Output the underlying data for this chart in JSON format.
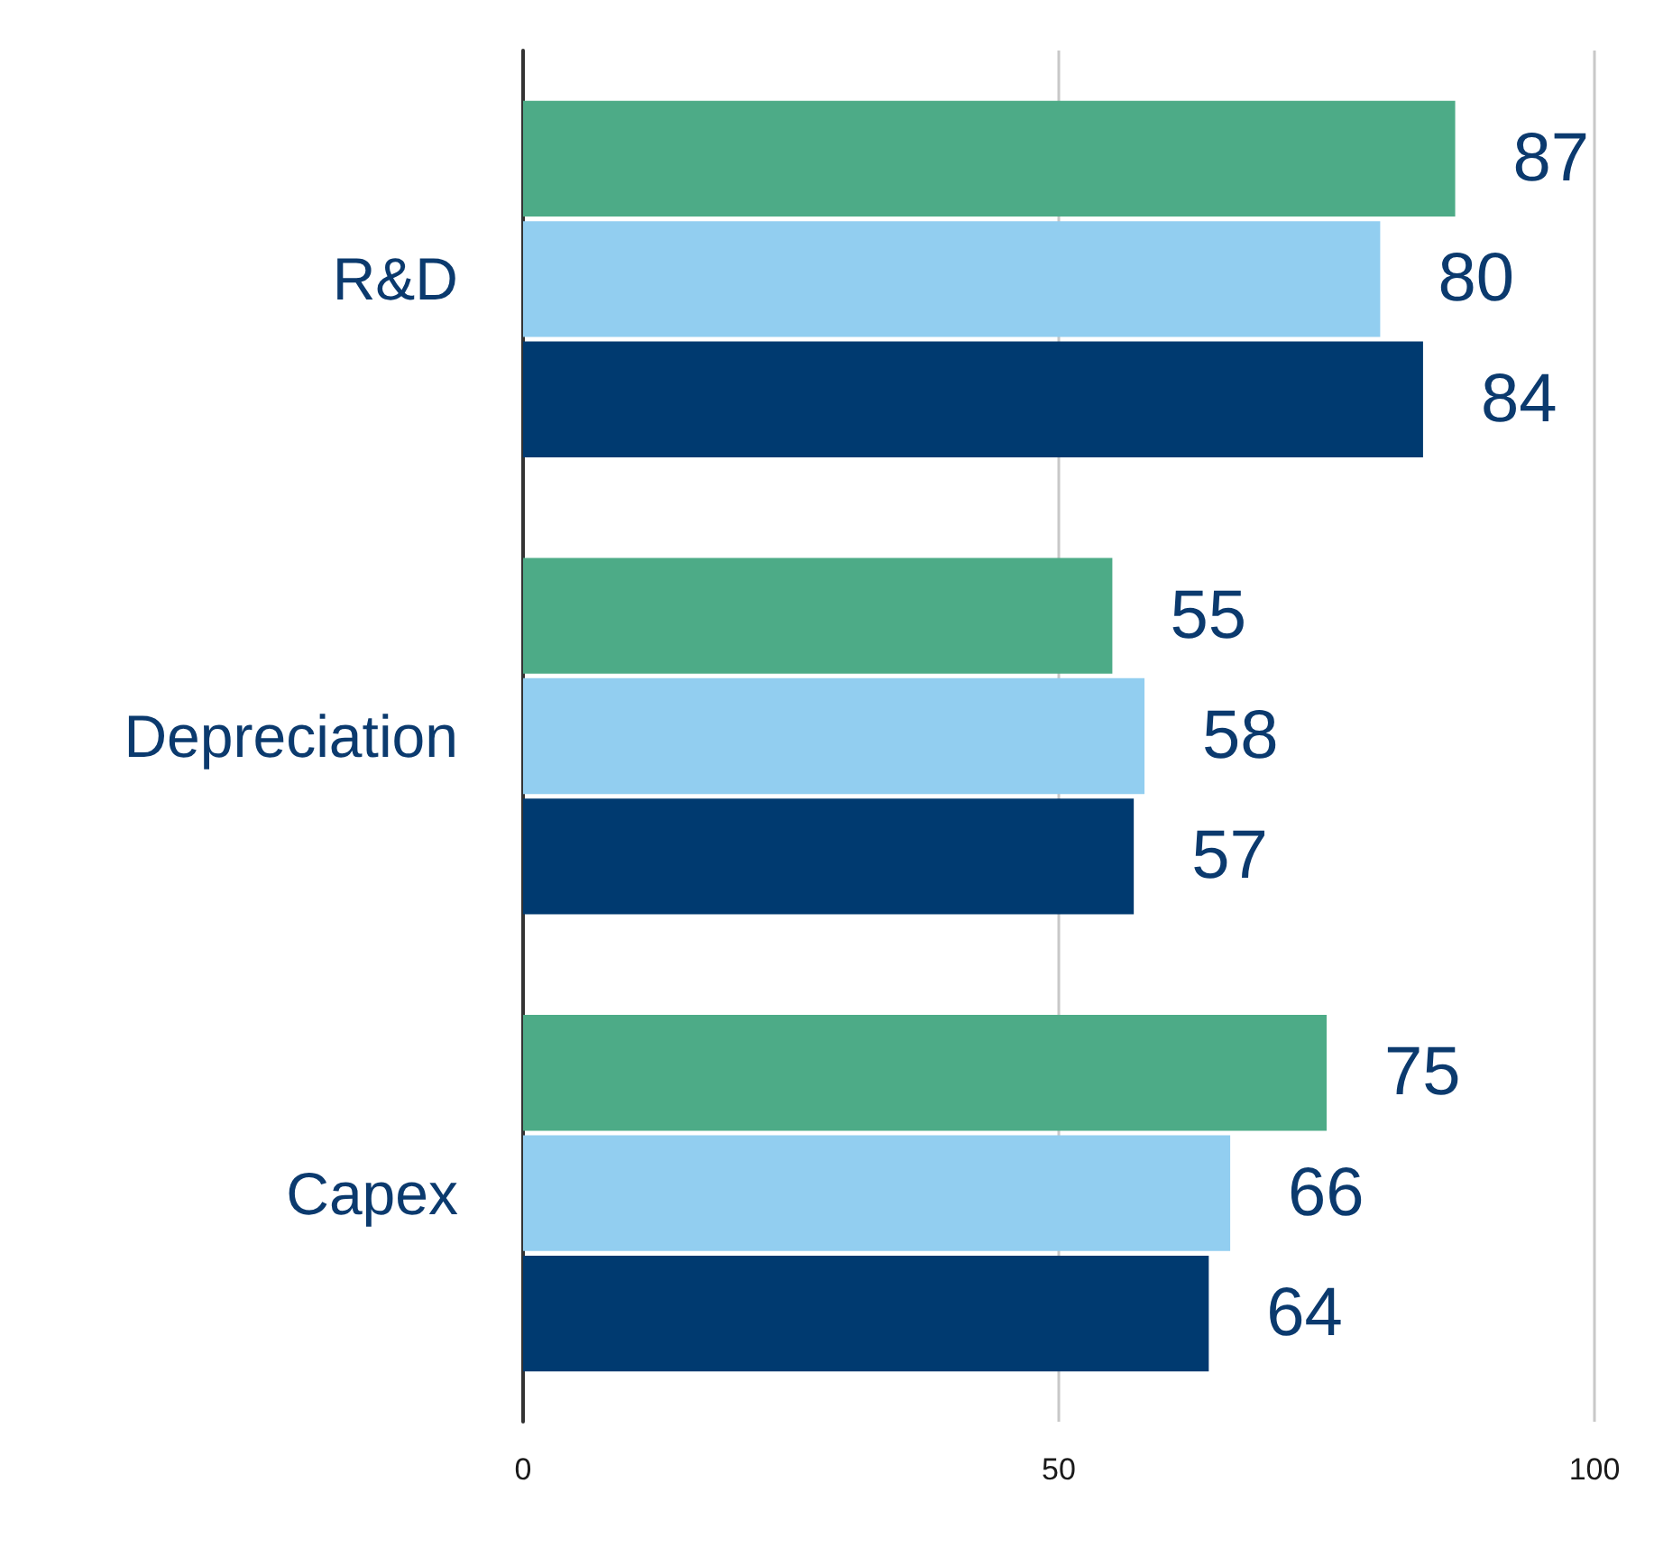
{
  "chart_data": {
    "type": "bar",
    "orientation": "horizontal",
    "categories": [
      "R&D",
      "Depreciation",
      "Capex"
    ],
    "series": [
      {
        "color": "#4dab87",
        "values": [
          87,
          55,
          75
        ]
      },
      {
        "color": "#92cef0",
        "values": [
          80,
          58,
          66
        ]
      },
      {
        "color": "#003a70",
        "values": [
          84,
          57,
          64
        ]
      }
    ],
    "xlim": [
      0,
      100
    ],
    "xticks": [
      0,
      50,
      100
    ],
    "grid": "x",
    "data_labels": true
  }
}
